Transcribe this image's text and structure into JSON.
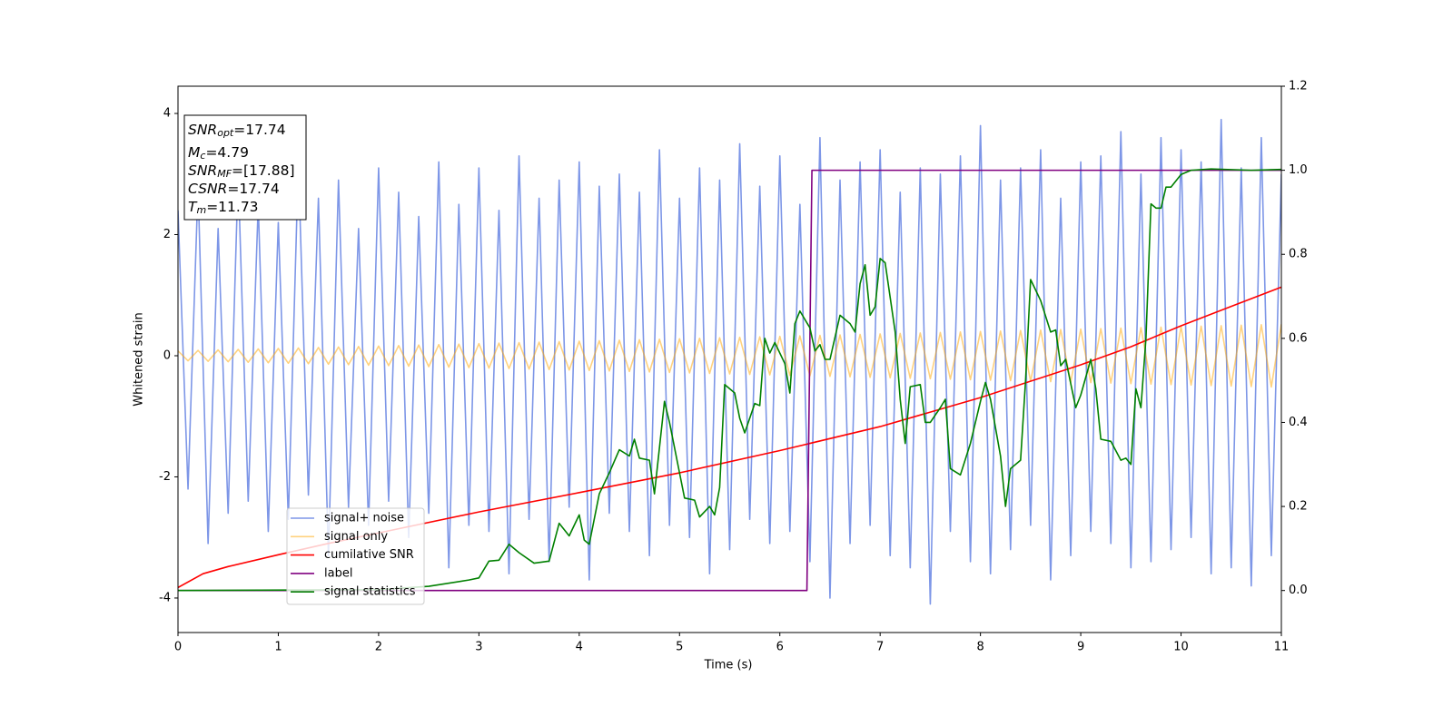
{
  "chart_data": {
    "type": "line",
    "xlabel": "Time (s)",
    "ylabel": "Whitened strain",
    "xlim": [
      0,
      11
    ],
    "ylim": [
      -4.57,
      4.45
    ],
    "y2lim": [
      -0.1,
      1.2
    ],
    "xticks": [
      0,
      1,
      2,
      3,
      4,
      5,
      6,
      7,
      8,
      9,
      10,
      11
    ],
    "yticks": [
      -4,
      -2,
      0,
      2,
      4
    ],
    "y2ticks": [
      {
        "value": 0,
        "label": "0.0"
      },
      0.2,
      0.4,
      0.6,
      0.8,
      {
        "value": 1,
        "label": "1.0"
      },
      1.2
    ],
    "legend": "lower left",
    "annotations": [
      {
        "main": "SNR",
        "sub": "opt",
        "rest": "=17.74"
      },
      {
        "main": "M",
        "sub": "c",
        "rest": "=4.79"
      },
      {
        "main": "SNR",
        "sub": "MF",
        "rest": "=[17.88]"
      },
      {
        "main": "CSNR",
        "rest": "=17.74"
      },
      {
        "main": "T",
        "sub": "m",
        "rest": "=11.73"
      }
    ],
    "x": [
      0,
      0.1,
      0.2,
      0.3,
      0.4,
      0.5,
      0.6,
      0.7,
      0.8,
      0.9,
      1,
      1.1,
      1.2,
      1.3,
      1.4,
      1.5,
      1.6,
      1.7,
      1.8,
      1.9,
      2,
      2.1,
      2.2,
      2.3,
      2.4,
      2.5,
      2.6,
      2.7,
      2.8,
      2.9,
      3,
      3.1,
      3.2,
      3.3,
      3.4,
      3.5,
      3.6,
      3.7,
      3.8,
      3.9,
      4,
      4.1,
      4.2,
      4.3,
      4.4,
      4.5,
      4.6,
      4.7,
      4.8,
      4.9,
      5,
      5.1,
      5.2,
      5.3,
      5.4,
      5.5,
      5.6,
      5.7,
      5.8,
      5.9,
      6,
      6.1,
      6.2,
      6.3,
      6.4,
      6.5,
      6.6,
      6.7,
      6.8,
      6.9,
      7,
      7.1,
      7.2,
      7.3,
      7.4,
      7.5,
      7.6,
      7.7,
      7.8,
      7.9,
      8,
      8.1,
      8.2,
      8.3,
      8.4,
      8.5,
      8.6,
      8.7,
      8.8,
      8.9,
      9,
      9.1,
      9.2,
      9.3,
      9.4,
      9.5,
      9.6,
      9.7,
      9.8,
      9.9,
      10,
      10.1,
      10.2,
      10.3,
      10.4,
      10.5,
      10.6,
      10.7,
      10.8,
      10.9,
      11
    ],
    "series": [
      {
        "name": "signal+ noise",
        "color": "#6f8be4",
        "opacity": 0.9,
        "values": [
          2.4,
          -2.2,
          2.8,
          -3.1,
          2.1,
          -2.6,
          3.0,
          -2.4,
          2.5,
          -2.9,
          2.2,
          -2.7,
          3.2,
          -2.3,
          2.6,
          -3.3,
          2.9,
          -2.5,
          2.1,
          -2.8,
          3.1,
          -2.4,
          2.7,
          -3.0,
          2.3,
          -2.6,
          3.2,
          -3.5,
          2.5,
          -2.8,
          3.1,
          -2.9,
          2.4,
          -3.6,
          3.3,
          -2.7,
          2.6,
          -3.4,
          2.9,
          -2.5,
          3.2,
          -3.7,
          2.8,
          -2.6,
          3.0,
          -2.9,
          2.7,
          -3.3,
          3.4,
          -2.8,
          2.6,
          -3.0,
          3.1,
          -3.6,
          2.9,
          -3.2,
          3.5,
          -2.7,
          2.8,
          -3.1,
          3.3,
          -2.9,
          2.5,
          -3.4,
          3.6,
          -4.0,
          2.9,
          -3.1,
          3.2,
          -2.8,
          3.4,
          -3.3,
          2.7,
          -3.5,
          3.1,
          -4.1,
          3.0,
          -2.9,
          3.3,
          -3.4,
          3.8,
          -3.6,
          2.9,
          -3.2,
          3.1,
          -2.8,
          3.4,
          -3.7,
          2.6,
          -3.3,
          3.2,
          -2.9,
          3.3,
          -3.1,
          3.7,
          -3.5,
          3.0,
          -3.4,
          3.6,
          -3.2,
          3.4,
          -3.0,
          3.2,
          -3.6,
          3.9,
          -3.5,
          3.1,
          -3.8,
          3.6,
          -3.3,
          3.0
        ]
      },
      {
        "name": "signal only",
        "color": "#ffa500",
        "opacity": 0.5,
        "values": [
          0.08,
          -0.084,
          0.088,
          -0.092,
          0.096,
          -0.1,
          0.104,
          -0.108,
          0.112,
          -0.116,
          0.12,
          -0.124,
          0.128,
          -0.132,
          0.136,
          -0.14,
          0.144,
          -0.148,
          0.152,
          -0.156,
          0.16,
          -0.164,
          0.168,
          -0.172,
          0.176,
          -0.18,
          0.184,
          -0.188,
          0.192,
          -0.196,
          0.2,
          -0.204,
          0.208,
          -0.212,
          0.216,
          -0.22,
          0.224,
          -0.228,
          0.232,
          -0.236,
          0.24,
          -0.244,
          0.248,
          -0.252,
          0.256,
          -0.26,
          0.264,
          -0.268,
          0.272,
          -0.276,
          0.28,
          -0.284,
          0.288,
          -0.292,
          0.296,
          -0.3,
          0.304,
          -0.308,
          0.312,
          -0.316,
          0.32,
          -0.324,
          0.328,
          -0.332,
          0.336,
          -0.34,
          0.344,
          -0.348,
          0.352,
          -0.356,
          0.36,
          -0.364,
          0.368,
          -0.372,
          0.376,
          -0.38,
          0.384,
          -0.388,
          0.392,
          -0.396,
          0.4,
          -0.404,
          0.408,
          -0.412,
          0.416,
          -0.42,
          0.424,
          -0.428,
          0.432,
          -0.436,
          0.44,
          -0.444,
          0.448,
          -0.452,
          0.456,
          -0.46,
          0.464,
          -0.468,
          0.472,
          -0.476,
          0.48,
          -0.484,
          0.488,
          -0.492,
          0.496,
          -0.5,
          0.504,
          -0.508,
          0.512,
          -0.516,
          0.52
        ]
      },
      {
        "name": "cumilative SNR",
        "color": "#ff0000",
        "axis": "y2",
        "x": [
          0,
          0.25,
          0.5,
          1,
          1.5,
          2,
          3,
          4,
          5,
          6,
          7,
          8,
          9,
          9.5,
          10,
          10.5,
          11
        ],
        "values": [
          0.007,
          0.04,
          0.057,
          0.085,
          0.112,
          0.137,
          0.187,
          0.233,
          0.28,
          0.333,
          0.39,
          0.459,
          0.537,
          0.58,
          0.63,
          0.676,
          0.722
        ]
      },
      {
        "name": "label",
        "color": "#800080",
        "axis": "y2",
        "x": [
          0,
          6.27,
          6.32,
          11
        ],
        "values": [
          0,
          0,
          1,
          1
        ]
      },
      {
        "name": "signal statistics",
        "color": "#008000",
        "axis": "y2",
        "x": [
          0,
          2,
          2.5,
          2.9,
          3.0,
          3.1,
          3.2,
          3.3,
          3.4,
          3.55,
          3.7,
          3.8,
          3.9,
          4.0,
          4.05,
          4.1,
          4.2,
          4.3,
          4.4,
          4.5,
          4.55,
          4.6,
          4.7,
          4.75,
          4.85,
          4.9,
          5.0,
          5.05,
          5.15,
          5.2,
          5.3,
          5.35,
          5.4,
          5.45,
          5.55,
          5.6,
          5.65,
          5.75,
          5.8,
          5.85,
          5.9,
          5.95,
          6.05,
          6.1,
          6.15,
          6.2,
          6.3,
          6.35,
          6.4,
          6.45,
          6.5,
          6.6,
          6.7,
          6.75,
          6.8,
          6.85,
          6.9,
          6.95,
          7.0,
          7.05,
          7.15,
          7.2,
          7.25,
          7.3,
          7.4,
          7.45,
          7.5,
          7.6,
          7.65,
          7.7,
          7.8,
          7.9,
          8.0,
          8.05,
          8.1,
          8.2,
          8.25,
          8.3,
          8.4,
          8.45,
          8.5,
          8.6,
          8.7,
          8.75,
          8.8,
          8.85,
          8.95,
          9.0,
          9.1,
          9.15,
          9.2,
          9.3,
          9.4,
          9.45,
          9.5,
          9.55,
          9.6,
          9.65,
          9.7,
          9.75,
          9.8,
          9.85,
          9.9,
          10.0,
          10.1,
          10.3,
          10.7,
          11
        ],
        "values": [
          0,
          0.002,
          0.01,
          0.025,
          0.03,
          0.07,
          0.072,
          0.11,
          0.09,
          0.065,
          0.07,
          0.16,
          0.13,
          0.18,
          0.12,
          0.11,
          0.23,
          0.28,
          0.335,
          0.32,
          0.36,
          0.315,
          0.31,
          0.23,
          0.45,
          0.4,
          0.28,
          0.22,
          0.215,
          0.175,
          0.2,
          0.18,
          0.245,
          0.49,
          0.47,
          0.41,
          0.375,
          0.445,
          0.44,
          0.6,
          0.565,
          0.59,
          0.54,
          0.47,
          0.635,
          0.665,
          0.625,
          0.57,
          0.585,
          0.55,
          0.55,
          0.655,
          0.635,
          0.615,
          0.73,
          0.775,
          0.655,
          0.675,
          0.79,
          0.78,
          0.615,
          0.455,
          0.35,
          0.485,
          0.49,
          0.4,
          0.4,
          0.435,
          0.455,
          0.29,
          0.275,
          0.35,
          0.45,
          0.495,
          0.455,
          0.32,
          0.2,
          0.29,
          0.31,
          0.5,
          0.74,
          0.69,
          0.615,
          0.62,
          0.535,
          0.55,
          0.435,
          0.465,
          0.55,
          0.48,
          0.36,
          0.355,
          0.31,
          0.315,
          0.3,
          0.48,
          0.435,
          0.6,
          0.92,
          0.91,
          0.91,
          0.96,
          0.96,
          0.99,
          1.0,
          1.003,
          1.0,
          1.002
        ]
      }
    ]
  }
}
